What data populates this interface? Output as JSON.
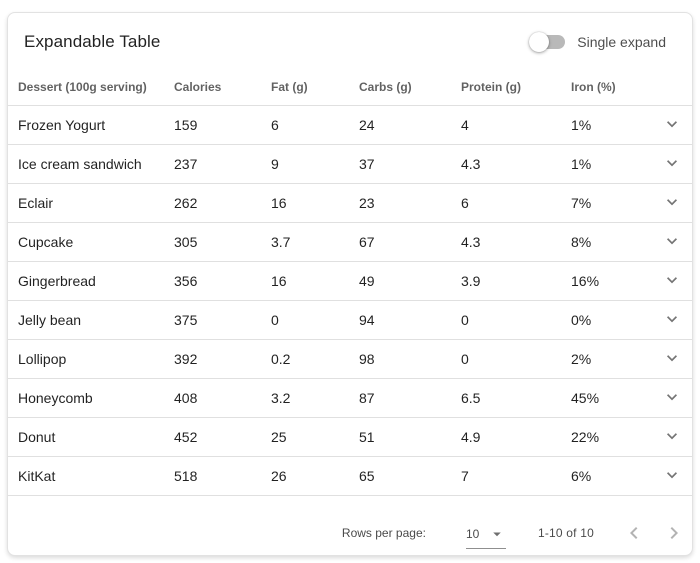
{
  "header": {
    "title": "Expandable Table",
    "single_expand_toggle": {
      "label": "Single expand",
      "state": "off"
    }
  },
  "table": {
    "columns": [
      "Dessert (100g serving)",
      "Calories",
      "Fat (g)",
      "Carbs (g)",
      "Protein (g)",
      "Iron (%)"
    ],
    "rows": [
      {
        "dessert": "Frozen Yogurt",
        "calories": "159",
        "fat": "6",
        "carbs": "24",
        "protein": "4",
        "iron": "1%"
      },
      {
        "dessert": "Ice cream sandwich",
        "calories": "237",
        "fat": "9",
        "carbs": "37",
        "protein": "4.3",
        "iron": "1%"
      },
      {
        "dessert": "Eclair",
        "calories": "262",
        "fat": "16",
        "carbs": "23",
        "protein": "6",
        "iron": "7%"
      },
      {
        "dessert": "Cupcake",
        "calories": "305",
        "fat": "3.7",
        "carbs": "67",
        "protein": "4.3",
        "iron": "8%"
      },
      {
        "dessert": "Gingerbread",
        "calories": "356",
        "fat": "16",
        "carbs": "49",
        "protein": "3.9",
        "iron": "16%"
      },
      {
        "dessert": "Jelly bean",
        "calories": "375",
        "fat": "0",
        "carbs": "94",
        "protein": "0",
        "iron": "0%"
      },
      {
        "dessert": "Lollipop",
        "calories": "392",
        "fat": "0.2",
        "carbs": "98",
        "protein": "0",
        "iron": "2%"
      },
      {
        "dessert": "Honeycomb",
        "calories": "408",
        "fat": "3.2",
        "carbs": "87",
        "protein": "6.5",
        "iron": "45%"
      },
      {
        "dessert": "Donut",
        "calories": "452",
        "fat": "25",
        "carbs": "51",
        "protein": "4.9",
        "iron": "22%"
      },
      {
        "dessert": "KitKat",
        "calories": "518",
        "fat": "26",
        "carbs": "65",
        "protein": "7",
        "iron": "6%"
      }
    ]
  },
  "footer": {
    "rows_per_page_label": "Rows per page:",
    "rows_per_page_value": "10",
    "page_range": "1-10 of 10"
  },
  "icons": {
    "row_expand": "chevron-down",
    "select": "menu-down",
    "prev_page": "chevron-left",
    "next_page": "chevron-right"
  },
  "colors": {
    "divider": "#e0e0e0",
    "row_chevron": "#757575",
    "disabled_chevron": "#b3b3b3",
    "switch_track_off": "#b9b9b9",
    "switch_thumb": "#ffffff"
  }
}
